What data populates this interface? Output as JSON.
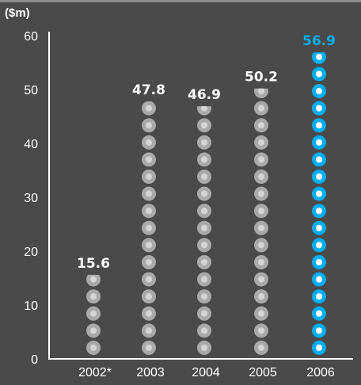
{
  "chart_data": {
    "type": "bar",
    "unit_label": "($m)",
    "categories": [
      "2002*",
      "2003",
      "2004",
      "2005",
      "2006"
    ],
    "values": [
      15.6,
      47.8,
      46.9,
      50.2,
      56.9
    ],
    "value_labels": [
      "15.6",
      "47.8",
      "46.9",
      "50.2",
      "56.9"
    ],
    "y_ticks": [
      0,
      10,
      20,
      30,
      40,
      50,
      60
    ],
    "ylim": [
      0,
      60
    ],
    "grid": false,
    "colors": {
      "background": "#4a4a4a",
      "bead_default": "#a9a9a9",
      "bead_default_inner": "#d4d4d4",
      "bead_highlight": "#00aeef",
      "bead_highlight_inner": "#ffffff",
      "axis": "#ffffff",
      "text": "#ffffff",
      "highlight_label": "#00aeef"
    },
    "highlight_index": 4
  }
}
